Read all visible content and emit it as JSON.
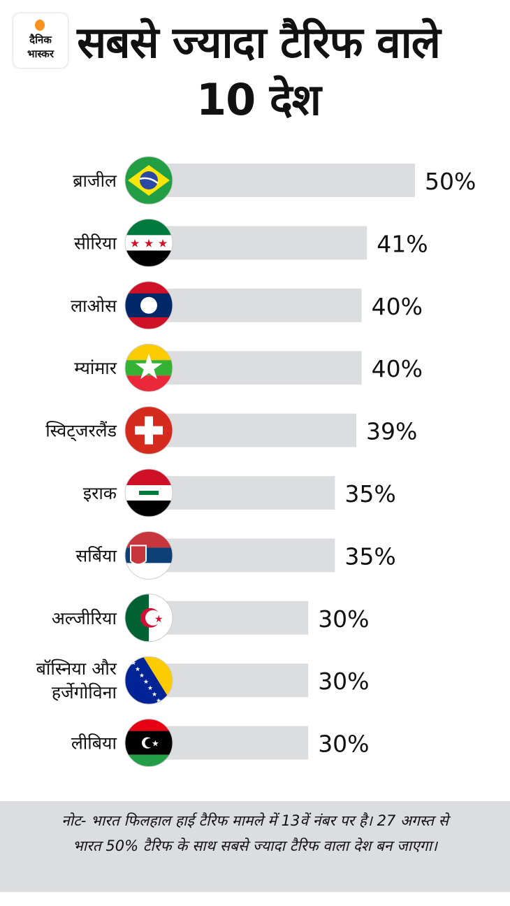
{
  "logo": {
    "line1": "दैनिक",
    "line2": "भास्कर"
  },
  "title": "सबसे ज्यादा टैरिफ वाले 10 देश",
  "colors": {
    "bar": "#dcdddf",
    "text": "#111111",
    "note_bg": "#dcdddf",
    "logo_sun": "#f7931e"
  },
  "chart_data": {
    "type": "bar",
    "orientation": "horizontal",
    "title": "सबसे ज्यादा टैरिफ वाले 10 देश",
    "unit": "%",
    "categories": [
      "ब्राजील",
      "सीरिया",
      "लाओस",
      "म्यांमार",
      "स्विट्जरलैंड",
      "इराक",
      "सर्बिया",
      "अल्जीरिया",
      "बॉस्निया और हर्जेगोविना",
      "लीबिया"
    ],
    "flags": [
      "brazil",
      "syria",
      "laos",
      "myanmar",
      "switzerland",
      "iraq",
      "serbia",
      "algeria",
      "bosnia",
      "libya"
    ],
    "values": [
      50,
      41,
      40,
      40,
      39,
      35,
      35,
      30,
      30,
      30
    ],
    "labels": [
      "50%",
      "41%",
      "40%",
      "40%",
      "39%",
      "35%",
      "35%",
      "30%",
      "30%",
      "30%"
    ],
    "xlim": [
      0,
      50
    ]
  },
  "note": "नोट- भारत फिलहाल हाई टैरिफ मामले में 13वें नंबर पर है। 27 अगस्त से भारत 50% टैरिफ के साथ सबसे ज्यादा टैरिफ वाला देश बन जाएगा।"
}
